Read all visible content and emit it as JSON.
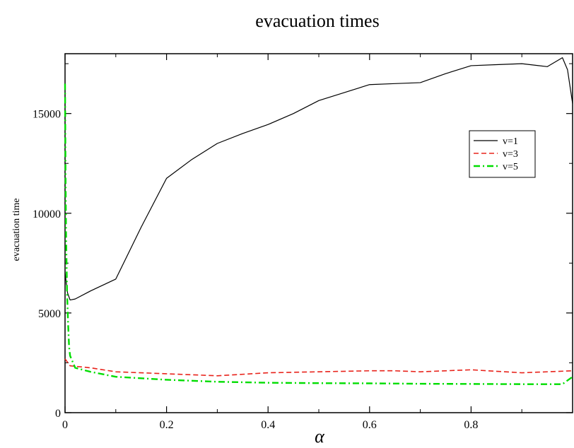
{
  "chart_data": {
    "type": "line",
    "title": "evacuation times",
    "xlabel": "α",
    "ylabel": "evacuation time",
    "xlim": [
      0,
      1
    ],
    "ylim": [
      0,
      18000
    ],
    "x_ticks": [
      0,
      0.2,
      0.4,
      0.6,
      0.8
    ],
    "x_tick_labels": [
      "0",
      "0.2",
      "0.4",
      "0.6",
      "0.8"
    ],
    "y_ticks": [
      0,
      5000,
      10000,
      15000
    ],
    "y_tick_labels": [
      "0",
      "5000",
      "10000",
      "15000"
    ],
    "grid": false,
    "legend_position": "right",
    "series": [
      {
        "name": "v=1",
        "color": "#000000",
        "style": "solid",
        "x": [
          0,
          0.005,
          0.01,
          0.02,
          0.05,
          0.1,
          0.15,
          0.2,
          0.25,
          0.3,
          0.35,
          0.4,
          0.45,
          0.5,
          0.55,
          0.6,
          0.65,
          0.7,
          0.75,
          0.8,
          0.85,
          0.9,
          0.95,
          0.98,
          0.99,
          1.0
        ],
        "y": [
          7000,
          6000,
          5650,
          5700,
          6100,
          6700,
          9300,
          11750,
          12700,
          13500,
          14000,
          14450,
          15000,
          15650,
          16050,
          16450,
          16500,
          16550,
          17000,
          17400,
          17450,
          17500,
          17350,
          17800,
          17200,
          15500
        ]
      },
      {
        "name": "v=3",
        "color": "#e8231b",
        "style": "dashed",
        "x": [
          0,
          0.01,
          0.05,
          0.1,
          0.2,
          0.3,
          0.4,
          0.5,
          0.6,
          0.65,
          0.7,
          0.8,
          0.9,
          1.0
        ],
        "y": [
          2700,
          2350,
          2250,
          2050,
          1950,
          1850,
          2000,
          2050,
          2100,
          2100,
          2050,
          2150,
          2000,
          2100
        ]
      },
      {
        "name": "v=5",
        "color": "#00dd00",
        "style": "dashdot",
        "x": [
          0,
          0.001,
          0.002,
          0.004,
          0.006,
          0.008,
          0.01,
          0.02,
          0.05,
          0.1,
          0.2,
          0.3,
          0.4,
          0.5,
          0.6,
          0.7,
          0.8,
          0.9,
          0.98,
          1.0
        ],
        "y": [
          16500,
          12000,
          9000,
          6000,
          4500,
          3300,
          2850,
          2250,
          2050,
          1800,
          1650,
          1550,
          1500,
          1480,
          1470,
          1450,
          1440,
          1430,
          1430,
          1800
        ]
      }
    ]
  }
}
